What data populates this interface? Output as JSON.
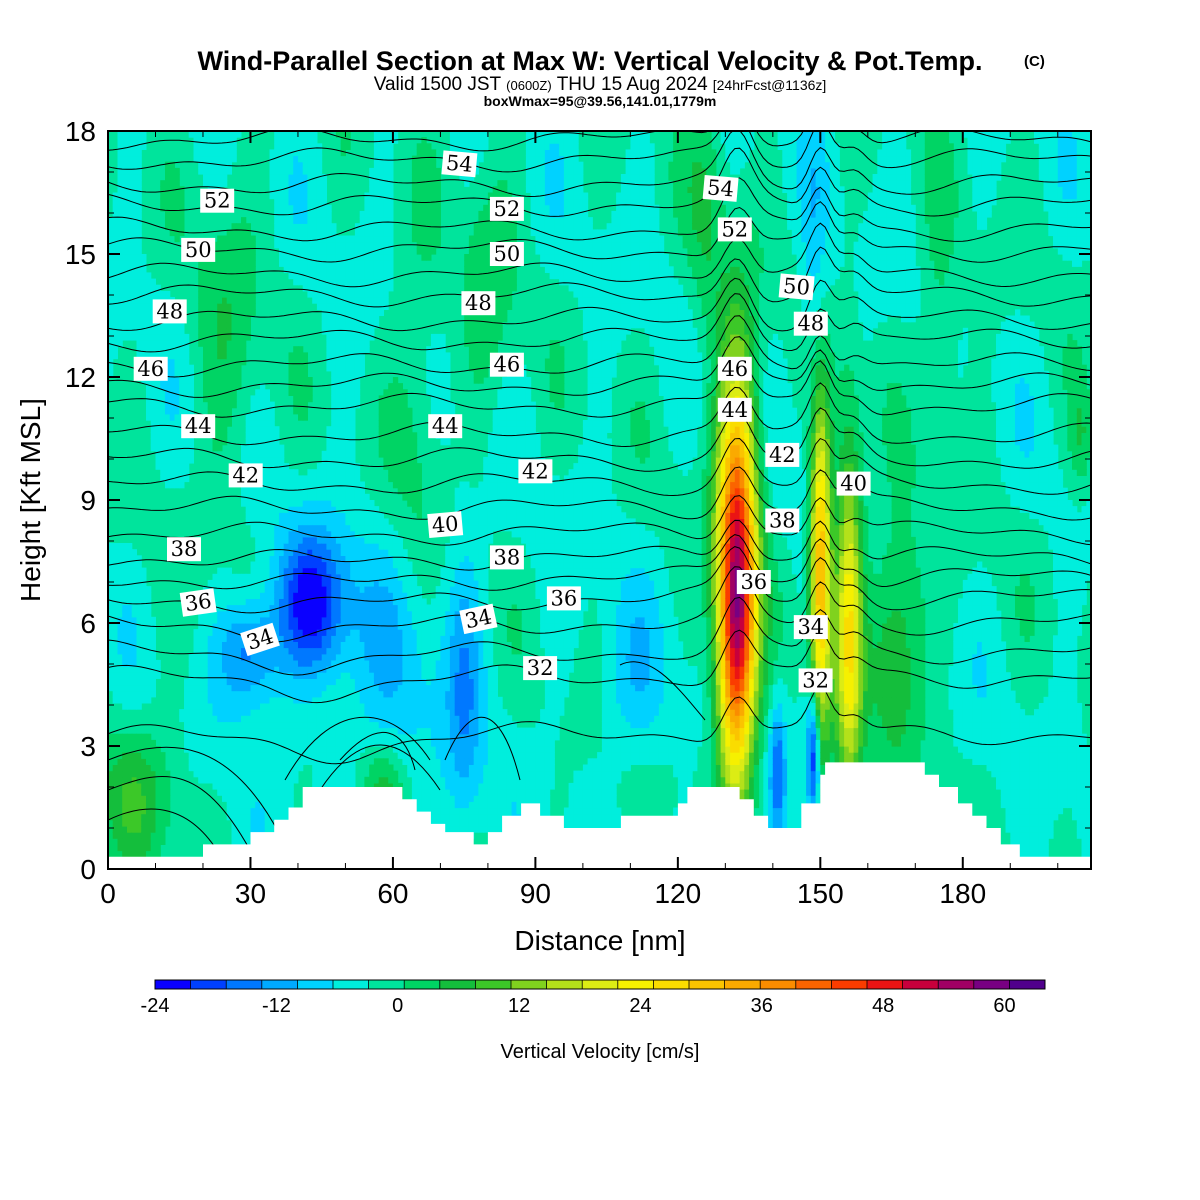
{
  "chart_data": {
    "type": "heatmap",
    "title": "Wind-Parallel Section at Max W: Vertical Velocity & Pot.Temp.",
    "title_mark": "(C)",
    "subtitle": {
      "valid": "Valid 1500 JST",
      "utc": "(0600Z)",
      "date": "THU 15 Aug 2024",
      "fcst": "[24hrFcst@1136z]"
    },
    "box_info": "boxWmax=95@39.56,141.01,1779m",
    "xlabel": "Distance [nm]",
    "ylabel": "Height [Kft MSL]",
    "xlim": [
      0,
      207
    ],
    "ylim": [
      0,
      18
    ],
    "xticks": [
      "0",
      "30",
      "60",
      "90",
      "120",
      "150",
      "180"
    ],
    "yticks": [
      "0",
      "3",
      "6",
      "9",
      "12",
      "15",
      "18"
    ],
    "colorbar": {
      "label": "Vertical Velocity [cm/s]",
      "tick_labels": [
        "-24",
        "-12",
        "0",
        "12",
        "24",
        "36",
        "48",
        "60"
      ],
      "tick_values": [
        -24,
        -12,
        0,
        12,
        24,
        36,
        48,
        60
      ],
      "vmin": -24,
      "vmax": 64,
      "step": 4,
      "colors": [
        "#0a00ff",
        "#0040ff",
        "#0078ff",
        "#00aaff",
        "#00d2ff",
        "#00eedd",
        "#00e49c",
        "#00d464",
        "#14be3c",
        "#3cc828",
        "#80d21e",
        "#b4e11a",
        "#dcec14",
        "#f6f000",
        "#fadc00",
        "#fac400",
        "#faaa00",
        "#fa8c00",
        "#fa6400",
        "#fa3c00",
        "#eb1414",
        "#c8003c",
        "#a00064",
        "#780082",
        "#50008c"
      ]
    },
    "terrain_profile": {
      "x": [
        0,
        20,
        30,
        35,
        38,
        41,
        59,
        62,
        65,
        68,
        71,
        77,
        80,
        83,
        87,
        91,
        96,
        106,
        108,
        120,
        122,
        133,
        136,
        139,
        146,
        150,
        151,
        168,
        172,
        175,
        179,
        182,
        185,
        188,
        192,
        207
      ],
      "height": [
        0.3,
        0.6,
        0.9,
        1.2,
        1.5,
        2.0,
        2.0,
        1.7,
        1.4,
        1.1,
        0.9,
        0.6,
        0.9,
        1.3,
        1.6,
        1.3,
        1.0,
        1.0,
        1.3,
        1.6,
        2.0,
        1.7,
        1.3,
        1.0,
        1.6,
        2.3,
        2.6,
        2.6,
        2.3,
        2.0,
        1.6,
        1.3,
        1.0,
        0.6,
        0.3,
        0.3
      ]
    },
    "features": [
      {
        "x": 132.5,
        "y": 7.5,
        "sx": 3.0,
        "sy": 3.4,
        "value": 56
      },
      {
        "x": 132,
        "y": 5.0,
        "sx": 2.6,
        "sy": 2.2,
        "value": 20
      },
      {
        "x": 150,
        "y": 7.5,
        "sx": 1.6,
        "sy": 3.0,
        "value": 44
      },
      {
        "x": 156,
        "y": 6.0,
        "sx": 2.0,
        "sy": 3.2,
        "value": 30
      },
      {
        "x": 166,
        "y": 5.5,
        "sx": 4.0,
        "sy": 2.0,
        "value": 14
      },
      {
        "x": 43,
        "y": 6.5,
        "sx": 5.0,
        "sy": 1.2,
        "value": -20
      },
      {
        "x": 30,
        "y": 5.3,
        "sx": 4.5,
        "sy": 1.0,
        "value": -16
      },
      {
        "x": 60,
        "y": 5.3,
        "sx": 12.0,
        "sy": 2.5,
        "value": -6
      },
      {
        "x": 75,
        "y": 4.0,
        "sx": 2.5,
        "sy": 2.6,
        "value": -8
      },
      {
        "x": 141,
        "y": 2.5,
        "sx": 1.2,
        "sy": 1.2,
        "value": -14
      },
      {
        "x": 148.5,
        "y": 2.8,
        "sx": 1.0,
        "sy": 1.1,
        "value": -24
      },
      {
        "x": 149,
        "y": 12.5,
        "sx": 2.0,
        "sy": 3.5,
        "value": -8
      },
      {
        "x": 110,
        "y": 4.5,
        "sx": 6.0,
        "sy": 1.5,
        "value": -6
      },
      {
        "x": 6,
        "y": 1.8,
        "sx": 6.0,
        "sy": 1.3,
        "value": 10
      },
      {
        "x": 58,
        "y": 2.0,
        "sx": 3.0,
        "sy": 0.7,
        "value": 9
      },
      {
        "x": 25,
        "y": 13.0,
        "sx": 5.0,
        "sy": 3.0,
        "value": 6
      },
      {
        "x": 65,
        "y": 11.0,
        "sx": 4.0,
        "sy": 3.0,
        "value": 6
      },
      {
        "x": 80,
        "y": 14.5,
        "sx": 4.0,
        "sy": 2.5,
        "value": 6
      },
      {
        "x": 126,
        "y": 16.0,
        "sx": 3.0,
        "sy": 2.5,
        "value": 7
      },
      {
        "x": 175,
        "y": 13.0,
        "sx": 3.0,
        "sy": 2.5,
        "value": 6
      },
      {
        "x": 205,
        "y": 10.5,
        "sx": 2.0,
        "sy": 1.0,
        "value": 8
      }
    ],
    "contours": {
      "variable": "potential temperature",
      "levels": [
        31,
        32,
        33,
        34,
        35,
        36,
        37,
        38,
        39,
        40,
        41,
        42,
        43,
        44,
        45,
        46,
        47,
        48,
        49,
        50,
        51,
        52,
        53,
        54,
        55
      ],
      "base_height": [
        3.3,
        4.7,
        5.3,
        6.0,
        6.6,
        7.1,
        7.6,
        8.2,
        8.8,
        9.4,
        10.0,
        10.6,
        11.3,
        11.8,
        12.3,
        12.9,
        13.4,
        14.0,
        14.5,
        15.1,
        15.6,
        16.2,
        16.7,
        17.3,
        17.8
      ],
      "labels": [
        {
          "text": "32",
          "x": 91,
          "y": 4.9,
          "angle": 0
        },
        {
          "text": "32",
          "x": 149,
          "y": 4.6,
          "angle": 0
        },
        {
          "text": "34",
          "x": 32,
          "y": 5.6,
          "angle": -18
        },
        {
          "text": "34",
          "x": 78,
          "y": 6.1,
          "angle": -12
        },
        {
          "text": "34",
          "x": 148,
          "y": 5.9,
          "angle": 0
        },
        {
          "text": "36",
          "x": 19,
          "y": 6.5,
          "angle": -8
        },
        {
          "text": "36",
          "x": 96,
          "y": 6.6,
          "angle": 0
        },
        {
          "text": "36",
          "x": 136,
          "y": 7.0,
          "angle": 0
        },
        {
          "text": "38",
          "x": 16,
          "y": 7.8,
          "angle": 0
        },
        {
          "text": "38",
          "x": 84,
          "y": 7.6,
          "angle": 0
        },
        {
          "text": "38",
          "x": 142,
          "y": 8.5,
          "angle": 0
        },
        {
          "text": "40",
          "x": 71,
          "y": 8.4,
          "angle": -5
        },
        {
          "text": "40",
          "x": 157,
          "y": 9.4,
          "angle": 0
        },
        {
          "text": "42",
          "x": 29,
          "y": 9.6,
          "angle": 0
        },
        {
          "text": "42",
          "x": 90,
          "y": 9.7,
          "angle": 0
        },
        {
          "text": "42",
          "x": 142,
          "y": 10.1,
          "angle": 0
        },
        {
          "text": "44",
          "x": 19,
          "y": 10.8,
          "angle": 0
        },
        {
          "text": "44",
          "x": 71,
          "y": 10.8,
          "angle": 0
        },
        {
          "text": "44",
          "x": 132,
          "y": 11.2,
          "angle": 0
        },
        {
          "text": "46",
          "x": 9,
          "y": 12.2,
          "angle": 0
        },
        {
          "text": "46",
          "x": 84,
          "y": 12.3,
          "angle": 0
        },
        {
          "text": "46",
          "x": 132,
          "y": 12.2,
          "angle": 0
        },
        {
          "text": "48",
          "x": 13,
          "y": 13.6,
          "angle": 0
        },
        {
          "text": "48",
          "x": 78,
          "y": 13.8,
          "angle": 0
        },
        {
          "text": "48",
          "x": 148,
          "y": 13.3,
          "angle": 0
        },
        {
          "text": "50",
          "x": 19,
          "y": 15.1,
          "angle": 0
        },
        {
          "text": "50",
          "x": 84,
          "y": 15.0,
          "angle": 0
        },
        {
          "text": "50",
          "x": 145,
          "y": 14.2,
          "angle": 5
        },
        {
          "text": "52",
          "x": 23,
          "y": 16.3,
          "angle": 0
        },
        {
          "text": "52",
          "x": 84,
          "y": 16.1,
          "angle": 0
        },
        {
          "text": "52",
          "x": 132,
          "y": 15.6,
          "angle": 0
        },
        {
          "text": "54",
          "x": 74,
          "y": 17.2,
          "angle": 5
        },
        {
          "text": "54",
          "x": 129,
          "y": 16.6,
          "angle": 5
        }
      ]
    }
  }
}
